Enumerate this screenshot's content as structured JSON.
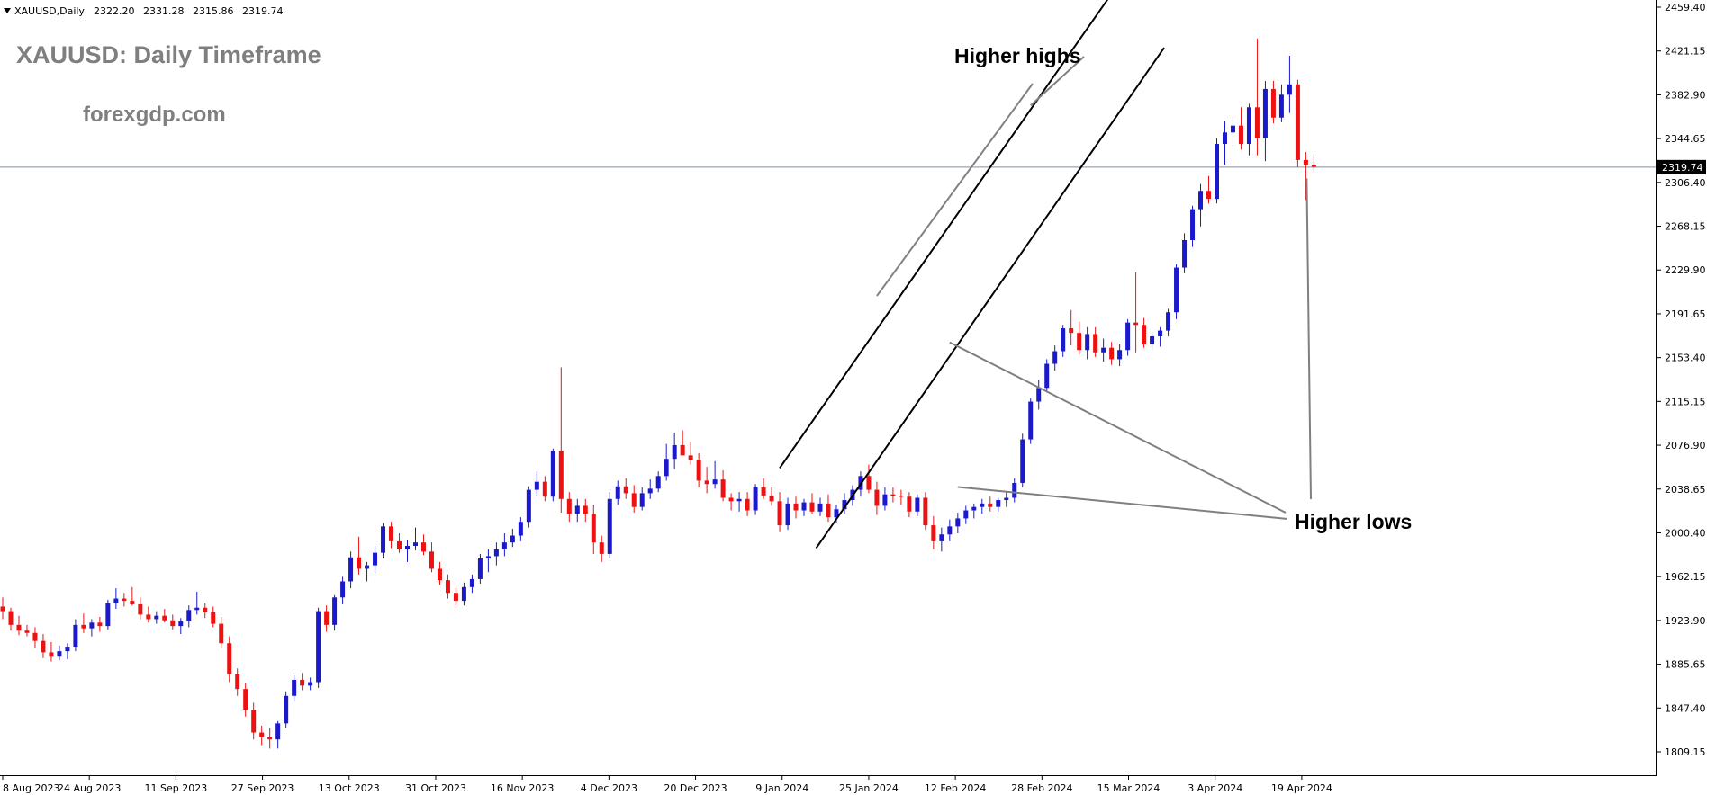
{
  "header": {
    "symbol_label": "XAUUSD,Daily",
    "open": "2322.20",
    "high": "2331.28",
    "low": "2315.86",
    "close": "2319.74"
  },
  "overlay": {
    "title": "XAUUSD: Daily Timeframe",
    "website": "forexgdp.com",
    "annotation_highs": "Higher highs",
    "annotation_lows": "Higher lows"
  },
  "colors": {
    "bull": "#1a1acc",
    "bear": "#ee1111",
    "channel": "#000000",
    "annotation_line": "#808080",
    "price_line": "#7f8fa6",
    "price_tag_bg": "#000000"
  },
  "chart_data": {
    "type": "candlestick",
    "symbol": "XAUUSD",
    "timeframe": "Daily",
    "title": "XAUUSD: Daily Timeframe",
    "current_price": 2319.74,
    "current_price_label": "2319.74",
    "ylim": [
      1795,
      2470
    ],
    "y_ticks": [
      "2459.40",
      "2421.15",
      "2382.90",
      "2344.65",
      "2306.40",
      "2268.15",
      "2229.90",
      "2191.65",
      "2153.40",
      "2115.15",
      "2076.90",
      "2038.65",
      "2000.40",
      "1962.15",
      "1923.90",
      "1885.65",
      "1847.40",
      "1809.15"
    ],
    "x_ticks": [
      "8 Aug 2023",
      "24 Aug 2023",
      "11 Sep 2023",
      "27 Sep 2023",
      "13 Oct 2023",
      "31 Oct 2023",
      "16 Nov 2023",
      "4 Dec 2023",
      "20 Dec 2023",
      "9 Jan 2024",
      "25 Jan 2024",
      "12 Feb 2024",
      "28 Feb 2024",
      "15 Mar 2024",
      "3 Apr 2024",
      "19 Apr 2024"
    ],
    "candles": [
      {
        "o": 1936,
        "h": 1944,
        "l": 1925,
        "c": 1932
      },
      {
        "o": 1932,
        "h": 1935,
        "l": 1915,
        "c": 1920
      },
      {
        "o": 1920,
        "h": 1928,
        "l": 1911,
        "c": 1915
      },
      {
        "o": 1915,
        "h": 1920,
        "l": 1910,
        "c": 1913
      },
      {
        "o": 1913,
        "h": 1918,
        "l": 1900,
        "c": 1906
      },
      {
        "o": 1906,
        "h": 1912,
        "l": 1891,
        "c": 1896
      },
      {
        "o": 1896,
        "h": 1905,
        "l": 1888,
        "c": 1893
      },
      {
        "o": 1893,
        "h": 1902,
        "l": 1889,
        "c": 1897
      },
      {
        "o": 1897,
        "h": 1904,
        "l": 1890,
        "c": 1901
      },
      {
        "o": 1901,
        "h": 1925,
        "l": 1897,
        "c": 1920
      },
      {
        "o": 1920,
        "h": 1930,
        "l": 1913,
        "c": 1917
      },
      {
        "o": 1917,
        "h": 1925,
        "l": 1910,
        "c": 1922
      },
      {
        "o": 1922,
        "h": 1927,
        "l": 1914,
        "c": 1919
      },
      {
        "o": 1919,
        "h": 1942,
        "l": 1916,
        "c": 1939
      },
      {
        "o": 1939,
        "h": 1952,
        "l": 1934,
        "c": 1943
      },
      {
        "o": 1943,
        "h": 1948,
        "l": 1936,
        "c": 1941
      },
      {
        "o": 1941,
        "h": 1953,
        "l": 1937,
        "c": 1938
      },
      {
        "o": 1938,
        "h": 1944,
        "l": 1925,
        "c": 1929
      },
      {
        "o": 1929,
        "h": 1936,
        "l": 1922,
        "c": 1925
      },
      {
        "o": 1925,
        "h": 1932,
        "l": 1921,
        "c": 1928
      },
      {
        "o": 1928,
        "h": 1934,
        "l": 1922,
        "c": 1924
      },
      {
        "o": 1924,
        "h": 1929,
        "l": 1916,
        "c": 1919
      },
      {
        "o": 1919,
        "h": 1926,
        "l": 1912,
        "c": 1923
      },
      {
        "o": 1923,
        "h": 1937,
        "l": 1918,
        "c": 1933
      },
      {
        "o": 1933,
        "h": 1949,
        "l": 1929,
        "c": 1935
      },
      {
        "o": 1935,
        "h": 1939,
        "l": 1926,
        "c": 1931
      },
      {
        "o": 1931,
        "h": 1936,
        "l": 1918,
        "c": 1921
      },
      {
        "o": 1921,
        "h": 1927,
        "l": 1900,
        "c": 1904
      },
      {
        "o": 1904,
        "h": 1910,
        "l": 1870,
        "c": 1877
      },
      {
        "o": 1877,
        "h": 1882,
        "l": 1858,
        "c": 1864
      },
      {
        "o": 1864,
        "h": 1869,
        "l": 1840,
        "c": 1846
      },
      {
        "o": 1846,
        "h": 1852,
        "l": 1820,
        "c": 1826
      },
      {
        "o": 1826,
        "h": 1832,
        "l": 1815,
        "c": 1822
      },
      {
        "o": 1822,
        "h": 1830,
        "l": 1812,
        "c": 1820
      },
      {
        "o": 1820,
        "h": 1836,
        "l": 1812,
        "c": 1834
      },
      {
        "o": 1834,
        "h": 1862,
        "l": 1830,
        "c": 1858
      },
      {
        "o": 1858,
        "h": 1876,
        "l": 1853,
        "c": 1872
      },
      {
        "o": 1872,
        "h": 1878,
        "l": 1863,
        "c": 1867
      },
      {
        "o": 1867,
        "h": 1874,
        "l": 1863,
        "c": 1870
      },
      {
        "o": 1870,
        "h": 1935,
        "l": 1865,
        "c": 1932
      },
      {
        "o": 1932,
        "h": 1937,
        "l": 1914,
        "c": 1920
      },
      {
        "o": 1920,
        "h": 1946,
        "l": 1915,
        "c": 1944
      },
      {
        "o": 1944,
        "h": 1962,
        "l": 1938,
        "c": 1958
      },
      {
        "o": 1958,
        "h": 1984,
        "l": 1952,
        "c": 1979
      },
      {
        "o": 1979,
        "h": 1997,
        "l": 1964,
        "c": 1969
      },
      {
        "o": 1969,
        "h": 1975,
        "l": 1958,
        "c": 1972
      },
      {
        "o": 1972,
        "h": 1989,
        "l": 1965,
        "c": 1983
      },
      {
        "o": 1983,
        "h": 2009,
        "l": 1978,
        "c": 2006
      },
      {
        "o": 2006,
        "h": 2010,
        "l": 1987,
        "c": 1993
      },
      {
        "o": 1993,
        "h": 2000,
        "l": 1983,
        "c": 1986
      },
      {
        "o": 1986,
        "h": 1994,
        "l": 1975,
        "c": 1989
      },
      {
        "o": 1989,
        "h": 2005,
        "l": 1985,
        "c": 1992
      },
      {
        "o": 1992,
        "h": 1999,
        "l": 1981,
        "c": 1984
      },
      {
        "o": 1984,
        "h": 1992,
        "l": 1966,
        "c": 1969
      },
      {
        "o": 1969,
        "h": 1975,
        "l": 1955,
        "c": 1959
      },
      {
        "o": 1959,
        "h": 1964,
        "l": 1943,
        "c": 1948
      },
      {
        "o": 1948,
        "h": 1952,
        "l": 1937,
        "c": 1941
      },
      {
        "o": 1941,
        "h": 1957,
        "l": 1937,
        "c": 1953
      },
      {
        "o": 1953,
        "h": 1964,
        "l": 1948,
        "c": 1960
      },
      {
        "o": 1960,
        "h": 1982,
        "l": 1956,
        "c": 1978
      },
      {
        "o": 1978,
        "h": 1986,
        "l": 1966,
        "c": 1980
      },
      {
        "o": 1980,
        "h": 1992,
        "l": 1972,
        "c": 1986
      },
      {
        "o": 1986,
        "h": 2000,
        "l": 1980,
        "c": 1992
      },
      {
        "o": 1992,
        "h": 2004,
        "l": 1988,
        "c": 1998
      },
      {
        "o": 1998,
        "h": 2014,
        "l": 1993,
        "c": 2010
      },
      {
        "o": 2010,
        "h": 2041,
        "l": 2005,
        "c": 2038
      },
      {
        "o": 2038,
        "h": 2054,
        "l": 2033,
        "c": 2045
      },
      {
        "o": 2045,
        "h": 2050,
        "l": 2028,
        "c": 2032
      },
      {
        "o": 2032,
        "h": 2074,
        "l": 2028,
        "c": 2072
      },
      {
        "o": 2072,
        "h": 2145,
        "l": 2018,
        "c": 2030
      },
      {
        "o": 2030,
        "h": 2036,
        "l": 2010,
        "c": 2017
      },
      {
        "o": 2017,
        "h": 2030,
        "l": 2010,
        "c": 2024
      },
      {
        "o": 2024,
        "h": 2030,
        "l": 2010,
        "c": 2017
      },
      {
        "o": 2017,
        "h": 2025,
        "l": 1982,
        "c": 1992
      },
      {
        "o": 1992,
        "h": 1998,
        "l": 1975,
        "c": 1982
      },
      {
        "o": 1982,
        "h": 2036,
        "l": 1978,
        "c": 2030
      },
      {
        "o": 2030,
        "h": 2046,
        "l": 2025,
        "c": 2041
      },
      {
        "o": 2041,
        "h": 2048,
        "l": 2030,
        "c": 2035
      },
      {
        "o": 2035,
        "h": 2042,
        "l": 2018,
        "c": 2023
      },
      {
        "o": 2023,
        "h": 2040,
        "l": 2020,
        "c": 2035
      },
      {
        "o": 2035,
        "h": 2047,
        "l": 2030,
        "c": 2039
      },
      {
        "o": 2039,
        "h": 2054,
        "l": 2036,
        "c": 2050
      },
      {
        "o": 2050,
        "h": 2078,
        "l": 2046,
        "c": 2065
      },
      {
        "o": 2065,
        "h": 2088,
        "l": 2056,
        "c": 2077
      },
      {
        "o": 2077,
        "h": 2090,
        "l": 2069,
        "c": 2068
      },
      {
        "o": 2068,
        "h": 2080,
        "l": 2060,
        "c": 2064
      },
      {
        "o": 2064,
        "h": 2070,
        "l": 2040,
        "c": 2046
      },
      {
        "o": 2046,
        "h": 2058,
        "l": 2035,
        "c": 2043
      },
      {
        "o": 2043,
        "h": 2063,
        "l": 2039,
        "c": 2047
      },
      {
        "o": 2047,
        "h": 2055,
        "l": 2028,
        "c": 2031
      },
      {
        "o": 2031,
        "h": 2035,
        "l": 2020,
        "c": 2028
      },
      {
        "o": 2028,
        "h": 2036,
        "l": 2019,
        "c": 2030
      },
      {
        "o": 2030,
        "h": 2036,
        "l": 2015,
        "c": 2020
      },
      {
        "o": 2020,
        "h": 2043,
        "l": 2016,
        "c": 2040
      },
      {
        "o": 2040,
        "h": 2048,
        "l": 2030,
        "c": 2033
      },
      {
        "o": 2033,
        "h": 2040,
        "l": 2024,
        "c": 2028
      },
      {
        "o": 2028,
        "h": 2036,
        "l": 2001,
        "c": 2007
      },
      {
        "o": 2007,
        "h": 2031,
        "l": 2003,
        "c": 2026
      },
      {
        "o": 2026,
        "h": 2032,
        "l": 2013,
        "c": 2020
      },
      {
        "o": 2020,
        "h": 2030,
        "l": 2015,
        "c": 2027
      },
      {
        "o": 2027,
        "h": 2035,
        "l": 2017,
        "c": 2019
      },
      {
        "o": 2019,
        "h": 2031,
        "l": 2015,
        "c": 2026
      },
      {
        "o": 2026,
        "h": 2034,
        "l": 2010,
        "c": 2014
      },
      {
        "o": 2014,
        "h": 2025,
        "l": 2009,
        "c": 2021
      },
      {
        "o": 2021,
        "h": 2035,
        "l": 2017,
        "c": 2029
      },
      {
        "o": 2029,
        "h": 2042,
        "l": 2024,
        "c": 2038
      },
      {
        "o": 2038,
        "h": 2054,
        "l": 2032,
        "c": 2050
      },
      {
        "o": 2050,
        "h": 2060,
        "l": 2035,
        "c": 2038
      },
      {
        "o": 2038,
        "h": 2045,
        "l": 2016,
        "c": 2024
      },
      {
        "o": 2024,
        "h": 2040,
        "l": 2020,
        "c": 2034
      },
      {
        "o": 2034,
        "h": 2040,
        "l": 2027,
        "c": 2033
      },
      {
        "o": 2033,
        "h": 2038,
        "l": 2025,
        "c": 2032
      },
      {
        "o": 2032,
        "h": 2036,
        "l": 2014,
        "c": 2019
      },
      {
        "o": 2019,
        "h": 2034,
        "l": 2015,
        "c": 2031
      },
      {
        "o": 2031,
        "h": 2036,
        "l": 2003,
        "c": 2007
      },
      {
        "o": 2007,
        "h": 2015,
        "l": 1986,
        "c": 1993
      },
      {
        "o": 1993,
        "h": 2005,
        "l": 1984,
        "c": 1999
      },
      {
        "o": 1999,
        "h": 2012,
        "l": 1993,
        "c": 2006
      },
      {
        "o": 2006,
        "h": 2018,
        "l": 2000,
        "c": 2013
      },
      {
        "o": 2013,
        "h": 2024,
        "l": 2008,
        "c": 2020
      },
      {
        "o": 2020,
        "h": 2026,
        "l": 2013,
        "c": 2023
      },
      {
        "o": 2023,
        "h": 2030,
        "l": 2017,
        "c": 2026
      },
      {
        "o": 2026,
        "h": 2032,
        "l": 2019,
        "c": 2023
      },
      {
        "o": 2023,
        "h": 2031,
        "l": 2019,
        "c": 2029
      },
      {
        "o": 2029,
        "h": 2036,
        "l": 2023,
        "c": 2031
      },
      {
        "o": 2031,
        "h": 2048,
        "l": 2027,
        "c": 2044
      },
      {
        "o": 2044,
        "h": 2087,
        "l": 2040,
        "c": 2082
      },
      {
        "o": 2082,
        "h": 2118,
        "l": 2078,
        "c": 2115
      },
      {
        "o": 2115,
        "h": 2134,
        "l": 2108,
        "c": 2127
      },
      {
        "o": 2127,
        "h": 2152,
        "l": 2123,
        "c": 2148
      },
      {
        "o": 2148,
        "h": 2164,
        "l": 2142,
        "c": 2159
      },
      {
        "o": 2159,
        "h": 2182,
        "l": 2154,
        "c": 2179
      },
      {
        "o": 2179,
        "h": 2195,
        "l": 2164,
        "c": 2175
      },
      {
        "o": 2175,
        "h": 2185,
        "l": 2156,
        "c": 2160
      },
      {
        "o": 2160,
        "h": 2180,
        "l": 2152,
        "c": 2174
      },
      {
        "o": 2174,
        "h": 2180,
        "l": 2154,
        "c": 2158
      },
      {
        "o": 2158,
        "h": 2170,
        "l": 2150,
        "c": 2162
      },
      {
        "o": 2162,
        "h": 2167,
        "l": 2147,
        "c": 2152
      },
      {
        "o": 2152,
        "h": 2165,
        "l": 2146,
        "c": 2160
      },
      {
        "o": 2160,
        "h": 2187,
        "l": 2155,
        "c": 2184
      },
      {
        "o": 2184,
        "h": 2228,
        "l": 2158,
        "c": 2182
      },
      {
        "o": 2182,
        "h": 2188,
        "l": 2162,
        "c": 2165
      },
      {
        "o": 2165,
        "h": 2176,
        "l": 2160,
        "c": 2172
      },
      {
        "o": 2172,
        "h": 2180,
        "l": 2163,
        "c": 2177
      },
      {
        "o": 2177,
        "h": 2196,
        "l": 2172,
        "c": 2193
      },
      {
        "o": 2193,
        "h": 2235,
        "l": 2187,
        "c": 2232
      },
      {
        "o": 2232,
        "h": 2262,
        "l": 2227,
        "c": 2256
      },
      {
        "o": 2256,
        "h": 2286,
        "l": 2250,
        "c": 2283
      },
      {
        "o": 2283,
        "h": 2305,
        "l": 2268,
        "c": 2299
      },
      {
        "o": 2299,
        "h": 2312,
        "l": 2288,
        "c": 2292
      },
      {
        "o": 2292,
        "h": 2345,
        "l": 2288,
        "c": 2340
      },
      {
        "o": 2340,
        "h": 2360,
        "l": 2322,
        "c": 2350
      },
      {
        "o": 2350,
        "h": 2365,
        "l": 2338,
        "c": 2356
      },
      {
        "o": 2356,
        "h": 2372,
        "l": 2335,
        "c": 2340
      },
      {
        "o": 2340,
        "h": 2375,
        "l": 2330,
        "c": 2372
      },
      {
        "o": 2372,
        "h": 2432,
        "l": 2330,
        "c": 2345
      },
      {
        "o": 2345,
        "h": 2395,
        "l": 2325,
        "c": 2388
      },
      {
        "o": 2388,
        "h": 2395,
        "l": 2358,
        "c": 2363
      },
      {
        "o": 2363,
        "h": 2392,
        "l": 2359,
        "c": 2383
      },
      {
        "o": 2383,
        "h": 2417,
        "l": 2367,
        "c": 2392
      },
      {
        "o": 2392,
        "h": 2396,
        "l": 2320,
        "c": 2326
      },
      {
        "o": 2326,
        "h": 2333,
        "l": 2291,
        "c": 2322
      },
      {
        "o": 2322,
        "h": 2331,
        "l": 2316,
        "c": 2320
      }
    ]
  }
}
